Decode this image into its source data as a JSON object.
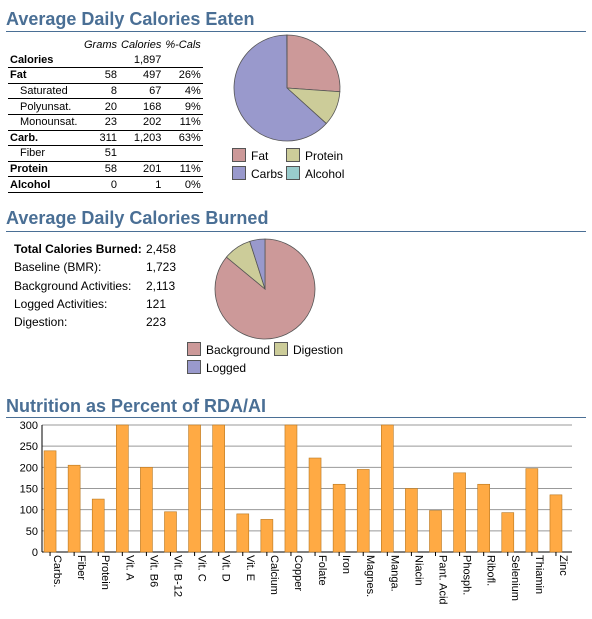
{
  "sections": {
    "eaten_title": "Average Daily Calories Eaten",
    "burned_title": "Average Daily Calories Burned",
    "rda_title": "Nutrition as Percent of RDA/AI"
  },
  "eaten_table": {
    "headers": [
      "Grams",
      "Calories",
      "%-Cals"
    ],
    "rows": [
      {
        "label": "Calories",
        "grams": "",
        "calories": "1,897",
        "pct": "",
        "style": "bold"
      },
      {
        "label": "Fat",
        "grams": "58",
        "calories": "497",
        "pct": "26%",
        "style": "bold"
      },
      {
        "label": "Saturated",
        "grams": "8",
        "calories": "67",
        "pct": "4%",
        "style": "sub"
      },
      {
        "label": "Polyunsat.",
        "grams": "20",
        "calories": "168",
        "pct": "9%",
        "style": "sub"
      },
      {
        "label": "Monounsat.",
        "grams": "23",
        "calories": "202",
        "pct": "11%",
        "style": "sub"
      },
      {
        "label": "Carb.",
        "grams": "311",
        "calories": "1,203",
        "pct": "63%",
        "style": "bold"
      },
      {
        "label": "Fiber",
        "grams": "51",
        "calories": "",
        "pct": "",
        "style": "sub"
      },
      {
        "label": "Protein",
        "grams": "58",
        "calories": "201",
        "pct": "11%",
        "style": "bold"
      },
      {
        "label": "Alcohol",
        "grams": "0",
        "calories": "1",
        "pct": "0%",
        "style": "bold"
      }
    ]
  },
  "burned_list": [
    {
      "label": "Total Calories Burned:",
      "value": "2,458",
      "bold": true
    },
    {
      "label": "Baseline (BMR):",
      "value": "1,723",
      "bold": false
    },
    {
      "label": "Background Activities:",
      "value": "2,113",
      "bold": false
    },
    {
      "label": "Logged Activities:",
      "value": "121",
      "bold": false
    },
    {
      "label": "Digestion:",
      "value": "223",
      "bold": false
    }
  ],
  "colors": {
    "fat": "#cc9999",
    "protein": "#cccc99",
    "carbs": "#9999cc",
    "alcohol": "#99cccc",
    "background": "#cc9999",
    "digestion": "#cccc99",
    "logged": "#9999cc",
    "bar": "#ffaa44",
    "title": "#4a6f95"
  },
  "chart_data": [
    {
      "type": "pie",
      "labels": [
        "Fat",
        "Protein",
        "Carbs",
        "Alcohol"
      ],
      "values": [
        497,
        201,
        1203,
        1
      ],
      "legend": "bottom"
    },
    {
      "type": "pie",
      "labels": [
        "Background",
        "Digestion",
        "Logged"
      ],
      "values": [
        2113,
        223,
        121
      ],
      "legend": "bottom"
    },
    {
      "type": "bar",
      "categories": [
        "Carbs.",
        "Fiber",
        "Protein",
        "Vit. A",
        "Vit. B6",
        "Vit. B-12",
        "Vit. C",
        "Vit. D",
        "Vit. E",
        "Calcium",
        "Copper",
        "Folate",
        "Iron",
        "Magnes.",
        "Manga.",
        "Niacin",
        "Pant. Acid",
        "Phosph.",
        "Ribofl.",
        "Selenium",
        "Thiamin",
        "Zinc"
      ],
      "values": [
        239,
        205,
        125,
        310,
        200,
        95,
        310,
        310,
        90,
        77,
        310,
        222,
        160,
        195,
        310,
        150,
        98,
        187,
        160,
        93,
        197,
        135
      ],
      "yticks": [
        0,
        50,
        100,
        150,
        200,
        250,
        300
      ],
      "ylim": [
        0,
        300
      ],
      "grid": true
    }
  ]
}
